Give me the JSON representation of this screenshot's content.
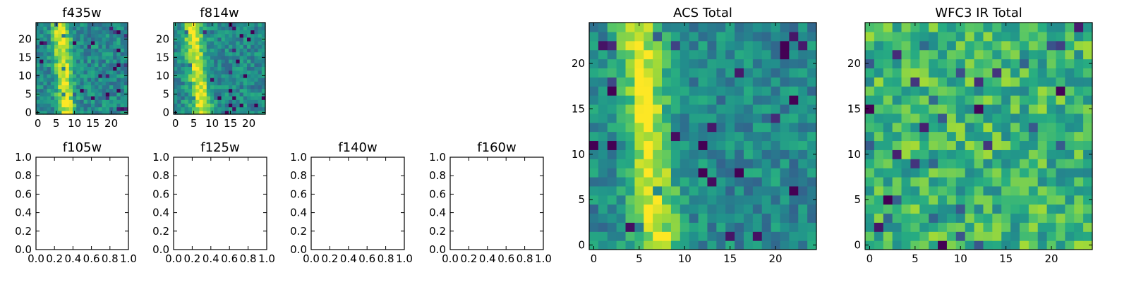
{
  "chart_data": [
    {
      "type": "heatmap",
      "title": "f435w",
      "colormap": "viridis",
      "xlim": [
        -0.5,
        24.5
      ],
      "ylim": [
        -0.5,
        24.5
      ],
      "xticks": [
        0,
        5,
        10,
        15,
        20
      ],
      "yticks": [
        0,
        5,
        10,
        15,
        20
      ],
      "xticklabels": [
        "0",
        "5",
        "10",
        "15",
        "20"
      ],
      "yticklabels": [
        "0",
        "5",
        "10",
        "15",
        "20"
      ],
      "grid": false,
      "band": {
        "column_center": 7,
        "column_width": 2.2,
        "tilt": 0.07
      }
    },
    {
      "type": "heatmap",
      "title": "f814w",
      "colormap": "viridis",
      "xlim": [
        -0.5,
        24.5
      ],
      "ylim": [
        -0.5,
        24.5
      ],
      "xticks": [
        0,
        5,
        10,
        15,
        20
      ],
      "yticks": [
        0,
        5,
        10,
        15,
        20
      ],
      "xticklabels": [
        "0",
        "5",
        "10",
        "15",
        "20"
      ],
      "yticklabels": [
        "0",
        "5",
        "10",
        "15",
        "20"
      ],
      "grid": false,
      "band": {
        "column_center": 6,
        "column_width": 2.4,
        "tilt": 0.12
      }
    },
    {
      "type": "empty",
      "title": "f105w",
      "xlim": [
        0,
        1
      ],
      "ylim": [
        0,
        1
      ],
      "xticks": [
        0,
        0.2,
        0.4,
        0.6,
        0.8,
        1
      ],
      "yticks": [
        0,
        0.2,
        0.4,
        0.6,
        0.8,
        1
      ],
      "xticklabels": [
        "0.0",
        "0.2",
        "0.4",
        "0.6",
        "0.8",
        "1.0"
      ],
      "yticklabels": [
        "0.0",
        "0.2",
        "0.4",
        "0.6",
        "0.8",
        "1.0"
      ]
    },
    {
      "type": "empty",
      "title": "f125w",
      "xlim": [
        0,
        1
      ],
      "ylim": [
        0,
        1
      ],
      "xticks": [
        0,
        0.2,
        0.4,
        0.6,
        0.8,
        1
      ],
      "yticks": [
        0,
        0.2,
        0.4,
        0.6,
        0.8,
        1
      ],
      "xticklabels": [
        "0.0",
        "0.2",
        "0.4",
        "0.6",
        "0.8",
        "1.0"
      ],
      "yticklabels": [
        "0.0",
        "0.2",
        "0.4",
        "0.6",
        "0.8",
        "1.0"
      ]
    },
    {
      "type": "empty",
      "title": "f140w",
      "xlim": [
        0,
        1
      ],
      "ylim": [
        0,
        1
      ],
      "xticks": [
        0,
        0.2,
        0.4,
        0.6,
        0.8,
        1
      ],
      "yticks": [
        0,
        0.2,
        0.4,
        0.6,
        0.8,
        1
      ],
      "xticklabels": [
        "0.0",
        "0.2",
        "0.4",
        "0.6",
        "0.8",
        "1.0"
      ],
      "yticklabels": [
        "0.0",
        "0.2",
        "0.4",
        "0.6",
        "0.8",
        "1.0"
      ]
    },
    {
      "type": "empty",
      "title": "f160w",
      "xlim": [
        0,
        1
      ],
      "ylim": [
        0,
        1
      ],
      "xticks": [
        0,
        0.2,
        0.4,
        0.6,
        0.8,
        1
      ],
      "yticks": [
        0,
        0.2,
        0.4,
        0.6,
        0.8,
        1
      ],
      "xticklabels": [
        "0.0",
        "0.2",
        "0.4",
        "0.6",
        "0.8",
        "1.0"
      ],
      "yticklabels": [
        "0.0",
        "0.2",
        "0.4",
        "0.6",
        "0.8",
        "1.0"
      ]
    },
    {
      "type": "heatmap",
      "title": "ACS Total",
      "colormap": "viridis",
      "xlim": [
        -0.5,
        24.5
      ],
      "ylim": [
        -0.5,
        24.5
      ],
      "xticks": [
        0,
        5,
        10,
        15,
        20
      ],
      "yticks": [
        0,
        5,
        10,
        15,
        20
      ],
      "xticklabels": [
        "0",
        "5",
        "10",
        "15",
        "20"
      ],
      "yticklabels": [
        "0",
        "5",
        "10",
        "15",
        "20"
      ],
      "grid": false,
      "band": {
        "column_center": 6,
        "column_width": 2.3,
        "tilt": 0.09
      }
    },
    {
      "type": "heatmap",
      "title": "WFC3 IR Total",
      "colormap": "viridis",
      "xlim": [
        -0.5,
        24.5
      ],
      "ylim": [
        -0.5,
        24.5
      ],
      "xticks": [
        0,
        5,
        10,
        15,
        20
      ],
      "yticks": [
        0,
        5,
        10,
        15,
        20
      ],
      "xticklabels": [
        "0",
        "5",
        "10",
        "15",
        "20"
      ],
      "yticklabels": [
        "0",
        "5",
        "10",
        "15",
        "20"
      ],
      "grid": false,
      "band": null
    }
  ]
}
